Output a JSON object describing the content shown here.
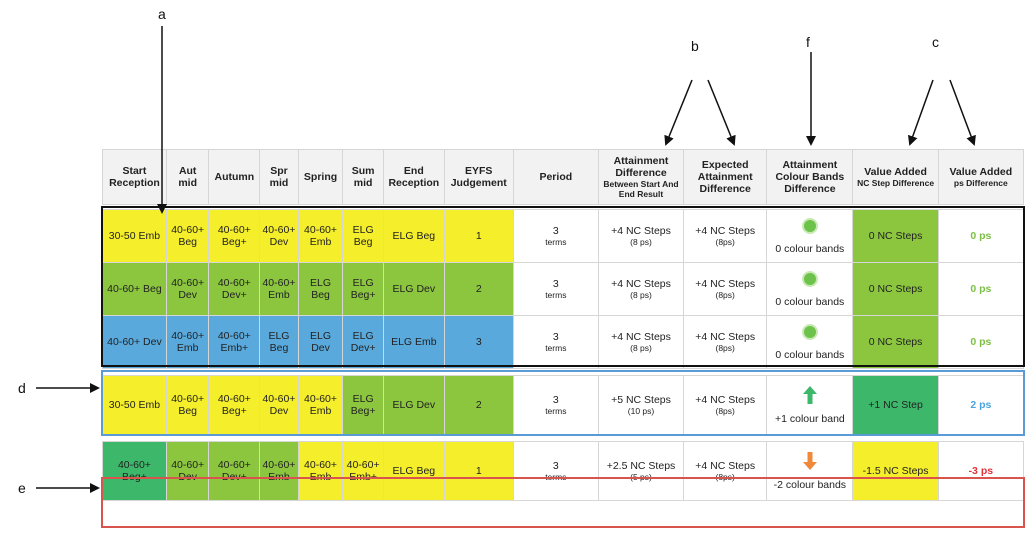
{
  "labels": {
    "a": "a",
    "b": "b",
    "f": "f",
    "c": "c",
    "d": "d",
    "e": "e"
  },
  "headers": [
    "Start Reception",
    "Aut mid",
    "Autumn",
    "Spr mid",
    "Spring",
    "Sum mid",
    "End Reception",
    "EYFS Judgement",
    "Period"
  ],
  "header_attainment": {
    "title": "Attainment Difference",
    "sub": "Between Start And End Result"
  },
  "header_expected": "Expected Attainment Difference",
  "header_colour": "Attainment Colour Bands Difference",
  "header_va_nc": {
    "title": "Value Added",
    "sub": "NC Step Difference"
  },
  "header_va_ps": {
    "title": "Value Added",
    "sub": "ps Difference"
  },
  "rows": [
    {
      "cells": [
        "30-50 Emb",
        "40-60+ Beg",
        "40-60+ Beg+",
        "40-60+ Dev",
        "40-60+ Emb",
        "ELG Beg",
        "ELG Beg",
        "1"
      ],
      "period": "3",
      "period_unit": "terms",
      "att": "+4 NC Steps",
      "att_ps": "(8 ps)",
      "exp": "+4 NC Steps",
      "exp_ps": "(8ps)",
      "colour": "0 colour bands",
      "va_nc": "0 NC Steps",
      "va_ps": "0 ps"
    },
    {
      "cells": [
        "40-60+ Beg",
        "40-60+ Dev",
        "40-60+ Dev+",
        "40-60+ Emb",
        "ELG Beg",
        "ELG Beg+",
        "ELG Dev",
        "2"
      ],
      "period": "3",
      "period_unit": "terms",
      "att": "+4 NC Steps",
      "att_ps": "(8 ps)",
      "exp": "+4 NC Steps",
      "exp_ps": "(8ps)",
      "colour": "0 colour bands",
      "va_nc": "0 NC Steps",
      "va_ps": "0 ps"
    },
    {
      "cells": [
        "40-60+ Dev",
        "40-60+ Emb",
        "40-60+ Emb+",
        "ELG Beg",
        "ELG Dev",
        "ELG Dev+",
        "ELG Emb",
        "3"
      ],
      "period": "3",
      "period_unit": "terms",
      "att": "+4 NC Steps",
      "att_ps": "(8 ps)",
      "exp": "+4 NC Steps",
      "exp_ps": "(8ps)",
      "colour": "0 colour bands",
      "va_nc": "0 NC Steps",
      "va_ps": "0 ps"
    },
    {
      "cells": [
        "30-50 Emb",
        "40-60+ Beg",
        "40-60+ Beg+",
        "40-60+ Dev",
        "40-60+ Emb",
        "ELG Beg+",
        "ELG Dev",
        "2"
      ],
      "period": "3",
      "period_unit": "terms",
      "att": "+5 NC Steps",
      "att_ps": "(10 ps)",
      "exp": "+4 NC Steps",
      "exp_ps": "(8ps)",
      "colour": "+1 colour band",
      "va_nc": "+1 NC Step",
      "va_ps": "2 ps"
    },
    {
      "cells": [
        "40-60+ Beg+",
        "40-60+ Dev",
        "40-60+ Dev+",
        "40-60+ Emb",
        "40-60+ Emb",
        "40-60+ Emb+",
        "ELG Beg",
        "1"
      ],
      "period": "3",
      "period_unit": "terms",
      "att": "+2.5 NC Steps",
      "att_ps": "(5 ps)",
      "exp": "+4 NC Steps",
      "exp_ps": "(8ps)",
      "colour": "-2 colour bands",
      "va_nc": "-1.5 NC Steps",
      "va_ps": "-3 ps"
    }
  ],
  "colors": {
    "yellow": "#f5ee2a",
    "green": "#8cc63f",
    "dark_green": "#3db86b",
    "blue": "#5aa9dc",
    "box_black": "#111111",
    "box_blue": "#5b9bd5",
    "box_red": "#d9534f"
  }
}
